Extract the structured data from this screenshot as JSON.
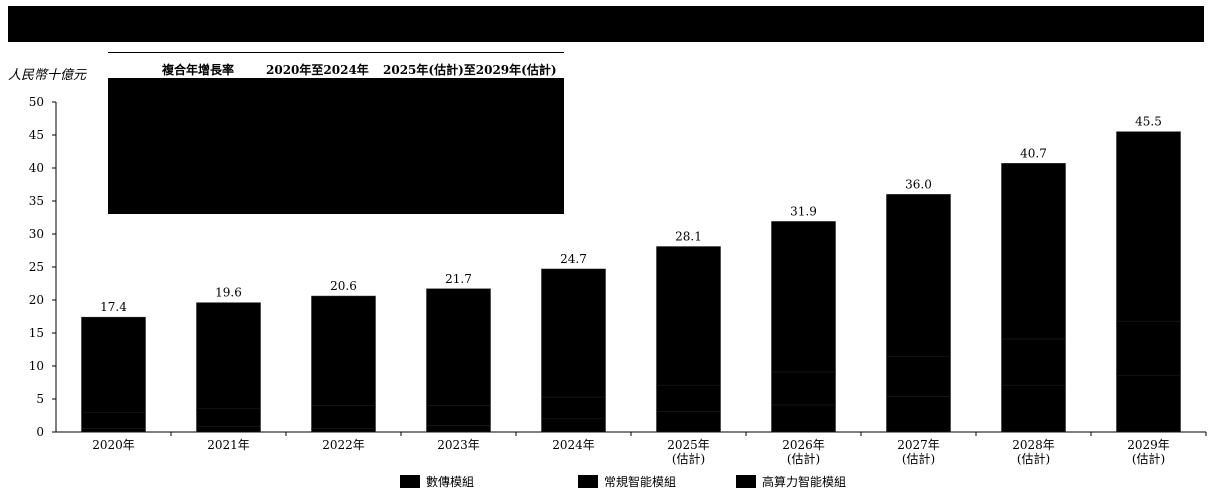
{
  "header": {
    "title": ""
  },
  "y_unit": "人民幣十億元",
  "cagr_table": {
    "title": "複合年增長率",
    "col1": "2020年至2024年",
    "col2": "2025年(估計)至2029年(估計)"
  },
  "colors": {
    "bar": "#000000",
    "background": "#ffffff"
  },
  "chart_data": {
    "type": "bar",
    "stacked": true,
    "categories": [
      "2020年",
      "2021年",
      "2022年",
      "2023年",
      "2024年",
      "2025年\n(估計)",
      "2026年\n(估計)",
      "2027年\n(估計)",
      "2028年\n(估計)",
      "2029年\n(估計)"
    ],
    "category_labels": [
      [
        "2020年"
      ],
      [
        "2021年"
      ],
      [
        "2022年"
      ],
      [
        "2023年"
      ],
      [
        "2024年"
      ],
      [
        "2025年",
        "(估計)"
      ],
      [
        "2026年",
        "(估計)"
      ],
      [
        "2027年",
        "(估計)"
      ],
      [
        "2028年",
        "(估計)"
      ],
      [
        "2029年",
        "(估計)"
      ]
    ],
    "totals": [
      17.4,
      19.6,
      20.6,
      21.7,
      24.7,
      28.1,
      31.9,
      36.0,
      40.7,
      45.5
    ],
    "total_labels": [
      "17.4",
      "19.6",
      "20.6",
      "21.7",
      "24.7",
      "28.1",
      "31.9",
      "36.0",
      "40.7",
      "45.5"
    ],
    "series": [
      {
        "name": "數傳模組",
        "values": [
          14.4,
          16.0,
          16.6,
          17.7,
          19.4,
          21.0,
          22.8,
          24.6,
          26.6,
          28.7
        ]
      },
      {
        "name": "常規智能模組",
        "values": [
          2.5,
          2.8,
          3.5,
          3.0,
          3.3,
          4.0,
          5.0,
          6.0,
          7.0,
          8.2
        ]
      },
      {
        "name": "高算力智能模組",
        "values": [
          0.5,
          0.8,
          0.5,
          1.0,
          2.0,
          3.1,
          4.1,
          5.4,
          7.1,
          8.6
        ]
      }
    ],
    "ylim": [
      0,
      50
    ],
    "yticks": [
      0,
      5,
      10,
      15,
      20,
      25,
      30,
      35,
      40,
      45,
      50
    ],
    "ylabel": "人民幣十億元",
    "xlabel": "",
    "grid": false,
    "legend_position": "bottom"
  }
}
